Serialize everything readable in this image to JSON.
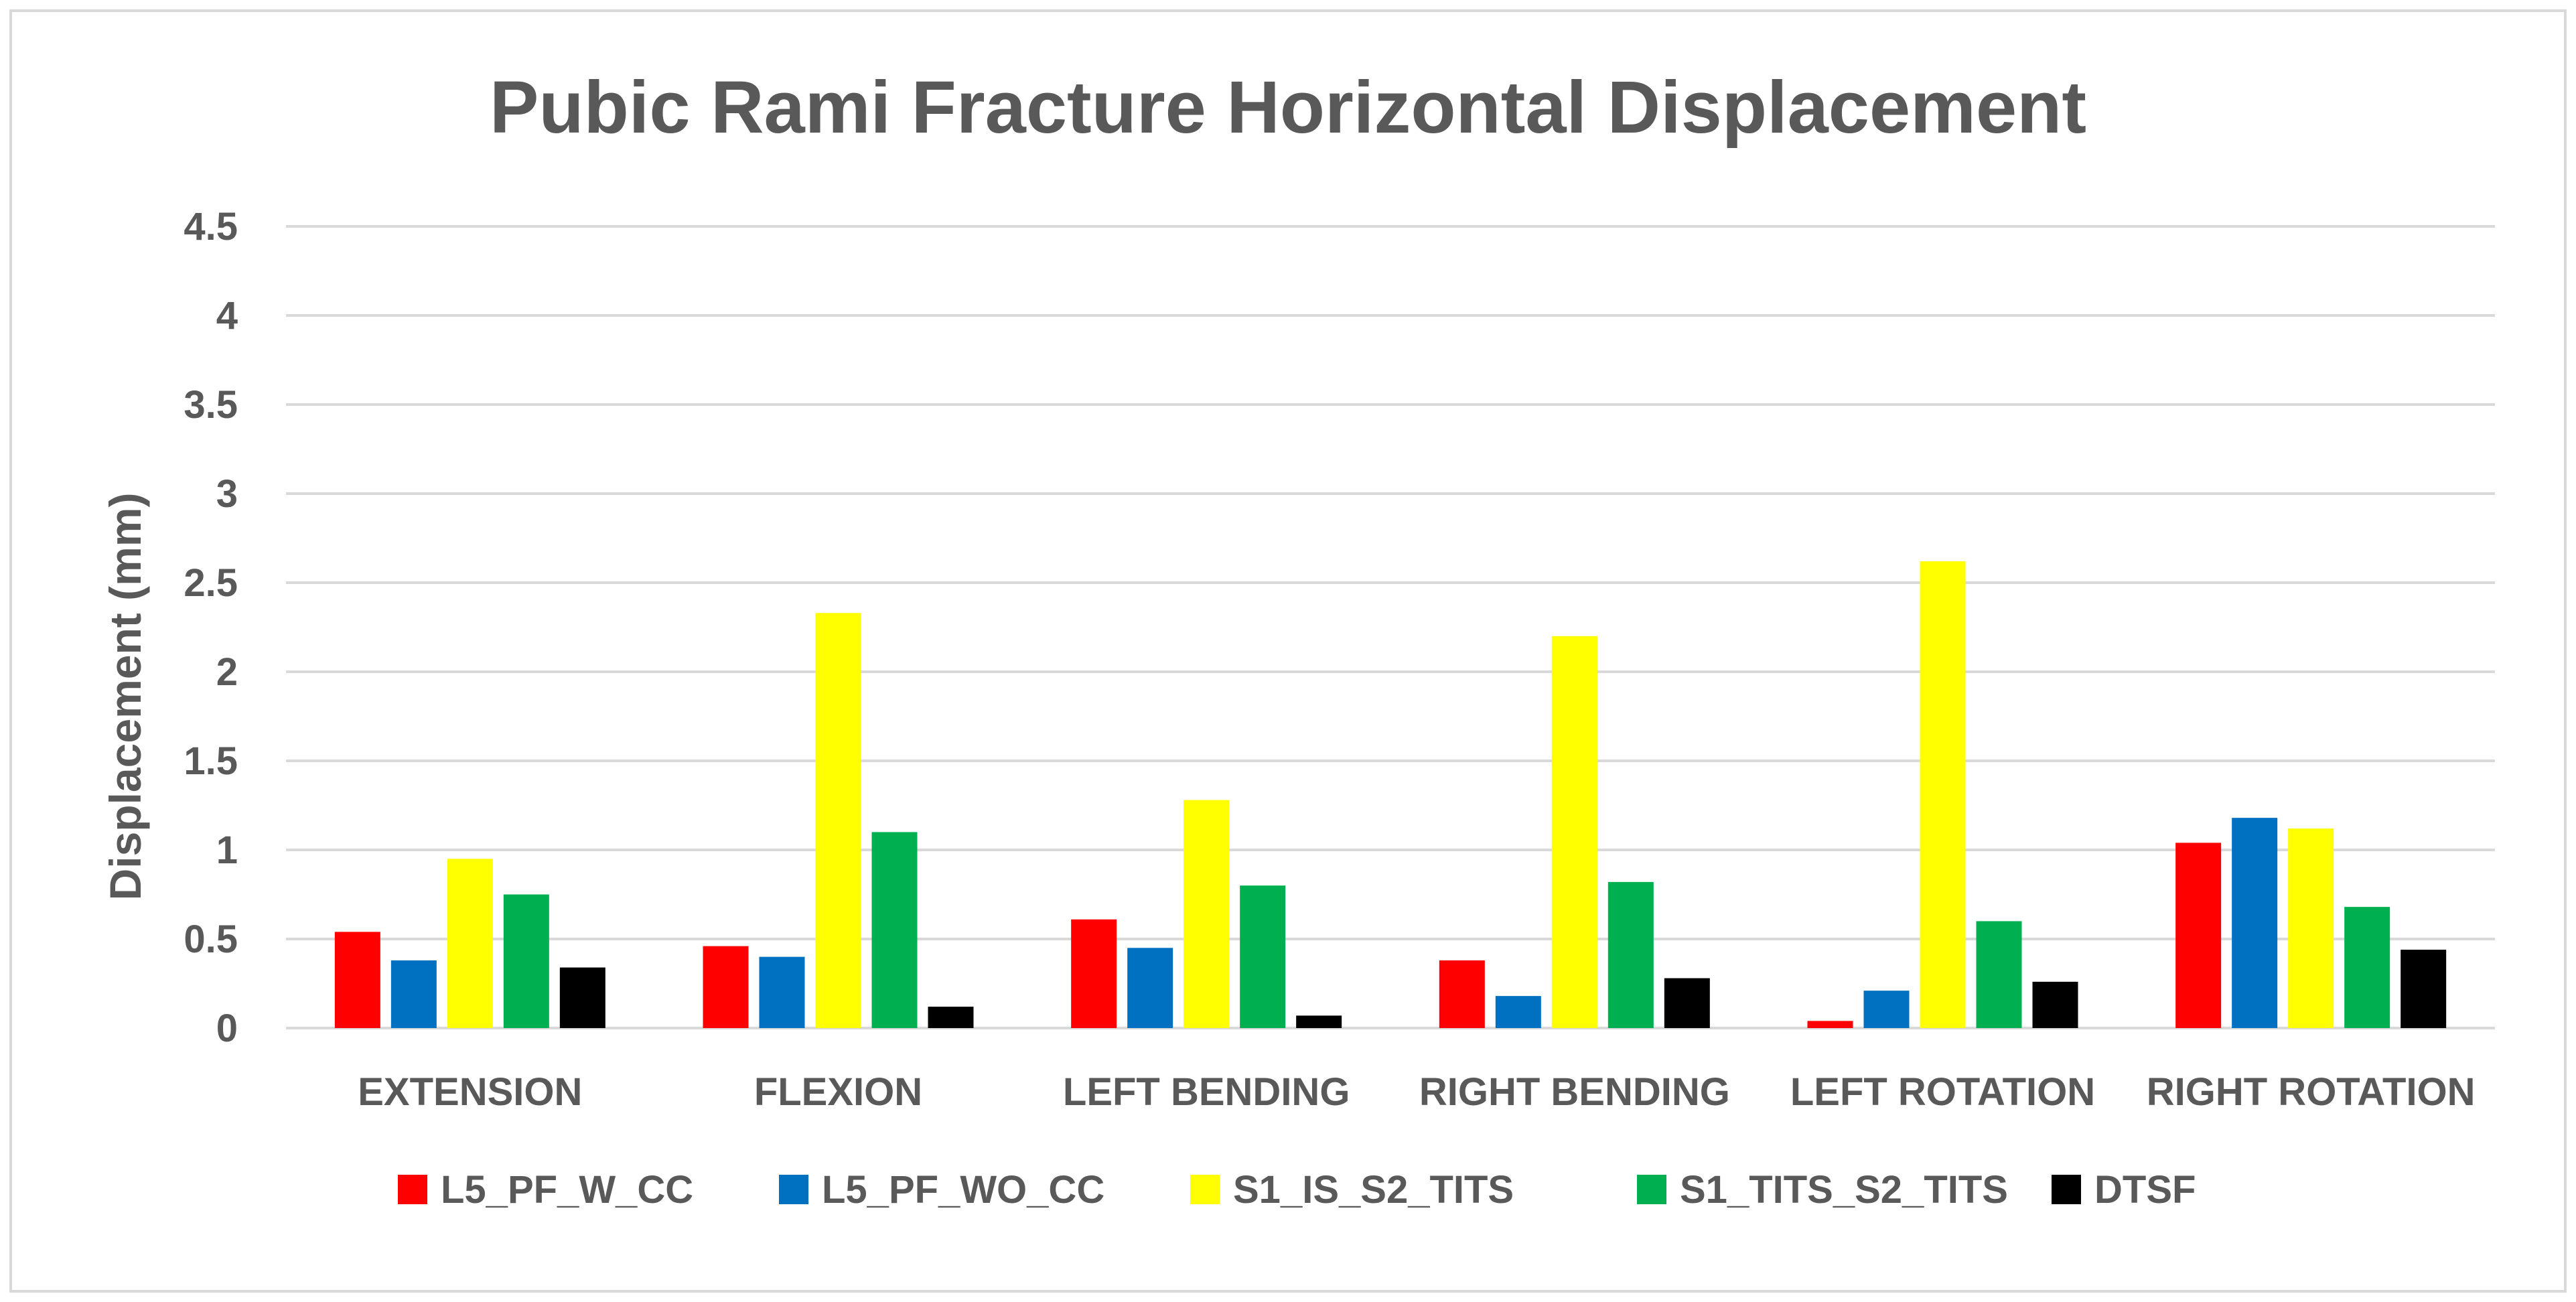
{
  "chart_data": {
    "type": "bar",
    "title": "Pubic Rami Fracture Horizontal Displacement",
    "xlabel": "",
    "ylabel": "Displacement (mm)",
    "ylim": [
      0,
      4.5
    ],
    "yticks": [
      "0",
      "0.5",
      "1",
      "1.5",
      "2",
      "2.5",
      "3",
      "3.5",
      "4",
      "4.5"
    ],
    "grid": true,
    "legend_position": "bottom",
    "categories": [
      "EXTENSION",
      "FLEXION",
      "LEFT BENDING",
      "RIGHT BENDING",
      "LEFT ROTATION",
      "RIGHT ROTATION"
    ],
    "series": [
      {
        "name": "L5_PF_W_CC",
        "color": "#ff0000",
        "values": [
          0.54,
          0.46,
          0.61,
          0.38,
          0.04,
          1.04
        ]
      },
      {
        "name": "L5_PF_WO_CC",
        "color": "#0070c0",
        "values": [
          0.38,
          0.4,
          0.45,
          0.18,
          0.21,
          1.18
        ]
      },
      {
        "name": "S1_IS_S2_TITS",
        "color": "#ffff00",
        "values": [
          0.95,
          2.33,
          1.28,
          2.2,
          2.62,
          1.12
        ]
      },
      {
        "name": "S1_TITS_S2_TITS",
        "color": "#00b050",
        "values": [
          0.75,
          1.1,
          0.8,
          0.82,
          0.6,
          0.68
        ]
      },
      {
        "name": "DTSF",
        "color": "#000000",
        "values": [
          0.34,
          0.12,
          0.07,
          0.28,
          0.26,
          0.44
        ]
      }
    ]
  }
}
